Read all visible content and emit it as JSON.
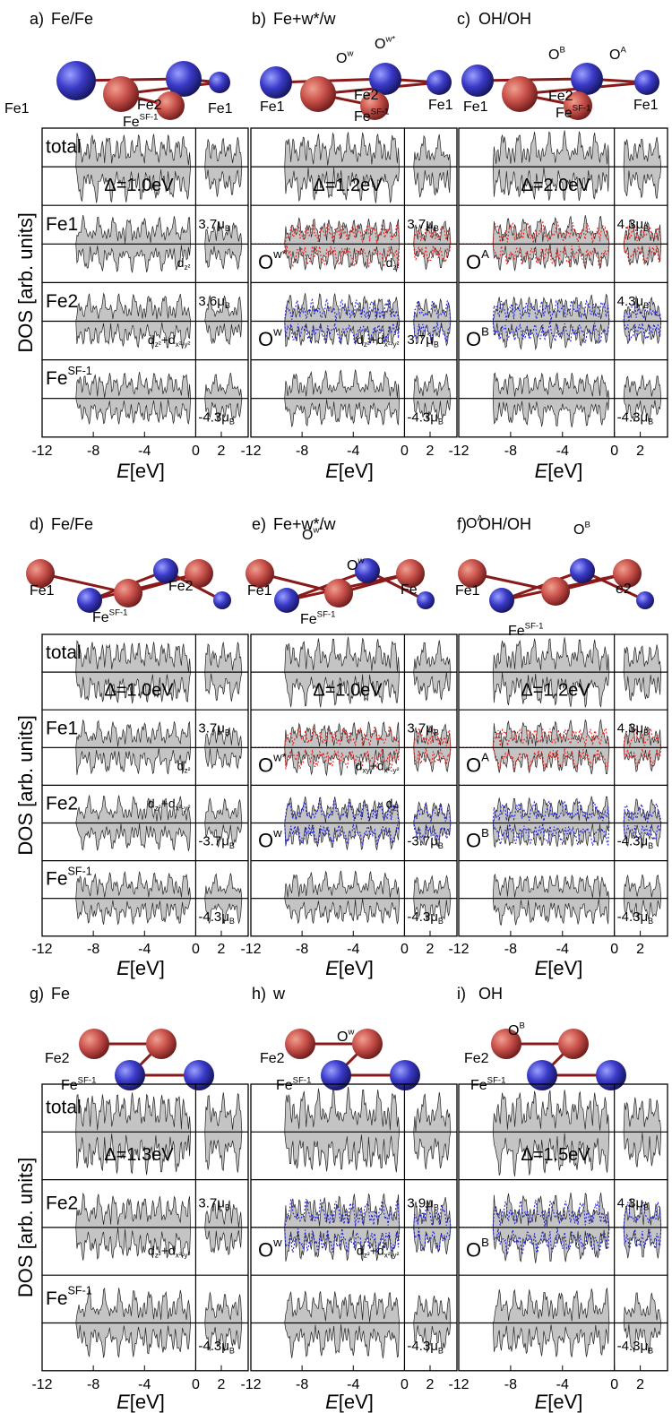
{
  "y_axis_label": "DOS [arb. units]",
  "x_axis_label": {
    "var": "E",
    "unit": "[eV]"
  },
  "xlim": [
    -12,
    4.1
  ],
  "xticks": [
    -12,
    -8,
    -4,
    0,
    2
  ],
  "panels": [
    {
      "label": "a)",
      "title": "Fe/Fe",
      "atoms": [
        [
          "Fe1"
        ],
        [
          "Fe2"
        ],
        [
          "Fe",
          {
            "sup": "SF-1"
          }
        ],
        [
          "Fe1"
        ]
      ],
      "pairs": [
        {
          "label": [
            "total"
          ],
          "delta": "Δ=1.0eV"
        },
        {
          "label": [
            "Fe1"
          ],
          "moment_up": [
            "3.7μ",
            {
              "sub": "B"
            }
          ],
          "orbital_down": [
            "d",
            {
              "sub": "z²"
            }
          ]
        },
        {
          "label": [
            "Fe2"
          ],
          "moment_up": [
            "3.6μ",
            {
              "sub": "B"
            }
          ],
          "orbital_down": [
            "d",
            {
              "sub": "z²"
            },
            "+d",
            {
              "sub": "x²-y²"
            }
          ]
        },
        {
          "label": [
            "Fe",
            {
              "sup": "SF-1"
            }
          ],
          "moment_down": [
            "-4.3μ",
            {
              "sub": "B"
            }
          ]
        }
      ]
    },
    {
      "label": "b)",
      "title": "Fe+w*/w",
      "atoms": [
        [
          "O",
          {
            "sup": "w"
          }
        ],
        [
          "O",
          {
            "sup": "w*"
          }
        ],
        [
          "Fe1"
        ],
        [
          "Fe2"
        ],
        [
          "Fe",
          {
            "sup": "SF-1"
          }
        ],
        [
          "Fe1"
        ]
      ],
      "pairs": [
        {
          "delta": "Δ=1.2eV"
        },
        {
          "overlay": {
            "parts": [
              "O",
              {
                "sup": "w*"
              }
            ],
            "color": "#e8211d"
          },
          "moment_up": [
            "3.7μ",
            {
              "sub": "B"
            }
          ],
          "orbital_down": [
            "d",
            {
              "sub": "z²"
            }
          ]
        },
        {
          "overlay": {
            "parts": [
              "O",
              {
                "sup": "w"
              }
            ],
            "color": "#1f1fd6"
          },
          "moment_down": [
            "3.7μ",
            {
              "sub": "B"
            }
          ],
          "orbital_down": [
            "d",
            {
              "sub": "z²"
            },
            "+d",
            {
              "sub": "x²-y²"
            }
          ]
        },
        {
          "moment_down": [
            "-4.3μ",
            {
              "sub": "B"
            }
          ]
        }
      ]
    },
    {
      "label": "c)",
      "title": "OH/OH",
      "atoms": [
        [
          "O",
          {
            "sup": "B"
          }
        ],
        [
          "O",
          {
            "sup": "A"
          }
        ],
        [
          "Fe1"
        ],
        [
          "Fe2"
        ],
        [
          "Fe",
          {
            "sup": "SF-1"
          }
        ],
        [
          "Fe1"
        ]
      ],
      "pairs": [
        {
          "delta": "Δ=2.0eV"
        },
        {
          "overlay": {
            "parts": [
              "O",
              {
                "sup": "A"
              }
            ],
            "color": "#e8211d"
          },
          "moment_up": [
            "4.3μ",
            {
              "sub": "B"
            }
          ]
        },
        {
          "overlay": {
            "parts": [
              "O",
              {
                "sup": "B"
              }
            ],
            "color": "#1f1fd6"
          },
          "moment_up": [
            "4.3μ",
            {
              "sub": "B"
            }
          ]
        },
        {
          "moment_down": [
            "-4.3μ",
            {
              "sub": "B"
            }
          ]
        }
      ]
    },
    {
      "label": "d)",
      "title": "Fe/Fe",
      "atoms": [
        [
          "Fe1"
        ],
        [
          "Fe",
          {
            "sup": "SF-1"
          }
        ],
        [
          "Fe2"
        ]
      ],
      "pairs": [
        {
          "label": [
            "total"
          ],
          "delta": "Δ=1.0eV"
        },
        {
          "label": [
            "Fe1"
          ],
          "moment_up": [
            "3.7μ",
            {
              "sub": "B"
            }
          ],
          "orbital_down": [
            "d",
            {
              "sub": "z²"
            }
          ]
        },
        {
          "label": [
            "Fe2"
          ],
          "orbital_up": [
            "d",
            {
              "sub": "z²"
            },
            "+d",
            {
              "sub": "x²-y²"
            }
          ],
          "moment_down": [
            "-3.7μ",
            {
              "sub": "B"
            }
          ]
        },
        {
          "label": [
            "Fe",
            {
              "sup": "SF-1"
            }
          ],
          "moment_down": [
            "-4.3μ",
            {
              "sub": "B"
            }
          ]
        }
      ]
    },
    {
      "label": "e)",
      "title": "Fe+w*/w",
      "atoms": [
        [
          "O",
          {
            "sup": "w*"
          }
        ],
        [
          "O",
          {
            "sup": "w"
          }
        ],
        [
          "Fe1"
        ],
        [
          "Fe",
          {
            "sup": "SF-1"
          }
        ],
        [
          "Fe"
        ]
      ],
      "pairs": [
        {
          "delta": "Δ=1.0eV"
        },
        {
          "overlay": {
            "parts": [
              "O",
              {
                "sup": "w*"
              }
            ],
            "color": "#e8211d"
          },
          "moment_up": [
            "3.7μ",
            {
              "sub": "B"
            }
          ],
          "orbital_down": [
            "d",
            {
              "sub": "xy"
            },
            "+d",
            {
              "sub": "x²-y²"
            }
          ]
        },
        {
          "overlay": {
            "parts": [
              "O",
              {
                "sup": "w"
              }
            ],
            "color": "#1f1fd6"
          },
          "orbital_up": [
            "d",
            {
              "sub": "z²"
            }
          ],
          "moment_down": [
            "-3.7μ",
            {
              "sub": "B"
            }
          ]
        },
        {
          "moment_down": [
            "-4.3μ",
            {
              "sub": "B"
            }
          ]
        }
      ]
    },
    {
      "label": "f)",
      "title": "OH/OH",
      "atoms": [
        [
          "O",
          {
            "sup": "A"
          }
        ],
        [
          "O",
          {
            "sup": "B"
          }
        ],
        [
          "Fe1"
        ],
        [
          "Fe",
          {
            "sup": "SF-1"
          }
        ],
        [
          "e2"
        ]
      ],
      "pairs": [
        {
          "delta": "Δ=1.2eV"
        },
        {
          "overlay": {
            "parts": [
              "O",
              {
                "sup": "A"
              }
            ],
            "color": "#e8211d"
          },
          "moment_up": [
            "4.3μ",
            {
              "sub": "B"
            }
          ]
        },
        {
          "overlay": {
            "parts": [
              "O",
              {
                "sup": "B"
              }
            ],
            "color": "#1f1fd6"
          },
          "moment_down": [
            "-4.3μ",
            {
              "sub": "B"
            }
          ]
        },
        {
          "moment_down": [
            "-4.3μ",
            {
              "sub": "B"
            }
          ]
        }
      ]
    },
    {
      "label": "g)",
      "title": "Fe",
      "atoms": [
        [
          "Fe2"
        ],
        [
          "Fe",
          {
            "sup": "SF-1"
          }
        ]
      ],
      "pairs": [
        {
          "label": [
            "total"
          ],
          "delta": "Δ=1.3eV"
        },
        {
          "label": [
            "Fe2"
          ],
          "moment_up": [
            "3.7μ",
            {
              "sub": "B"
            }
          ],
          "orbital_down": [
            "d",
            {
              "sub": "z²"
            },
            "+d",
            {
              "sub": "x²-y²"
            }
          ]
        },
        {
          "label": [
            "Fe",
            {
              "sup": "SF-1"
            }
          ],
          "moment_down": [
            "-4.3μ",
            {
              "sub": "B"
            }
          ]
        }
      ]
    },
    {
      "label": "h)",
      "title": "w",
      "atoms": [
        [
          "O",
          {
            "sup": "w"
          }
        ],
        [
          "Fe2"
        ],
        [
          "Fe",
          {
            "sup": "SF-1"
          }
        ]
      ],
      "pairs": [
        {},
        {
          "overlay": {
            "parts": [
              "O",
              {
                "sup": "w"
              }
            ],
            "color": "#1f1fd6"
          },
          "moment_up": [
            "3.9μ",
            {
              "sub": "B"
            }
          ],
          "orbital_down": [
            "d",
            {
              "sub": "z²"
            },
            "+d",
            {
              "sub": "x²-y²"
            }
          ]
        },
        {
          "moment_down": [
            "-4.3μ",
            {
              "sub": "B"
            }
          ]
        }
      ]
    },
    {
      "label": "i)",
      "title": "OH",
      "atoms": [
        [
          "O",
          {
            "sup": "B"
          }
        ],
        [
          "Fe2"
        ],
        [
          "Fe",
          {
            "sup": "SF-1"
          }
        ]
      ],
      "pairs": [
        {
          "delta": "Δ=1.5eV"
        },
        {
          "overlay": {
            "parts": [
              "O",
              {
                "sup": "B"
              }
            ],
            "color": "#1f1fd6"
          },
          "moment_up": [
            "4.3μ",
            {
              "sub": "B"
            }
          ]
        },
        {
          "moment_down": [
            "-4.3μ",
            {
              "sub": "B"
            }
          ]
        }
      ]
    }
  ]
}
